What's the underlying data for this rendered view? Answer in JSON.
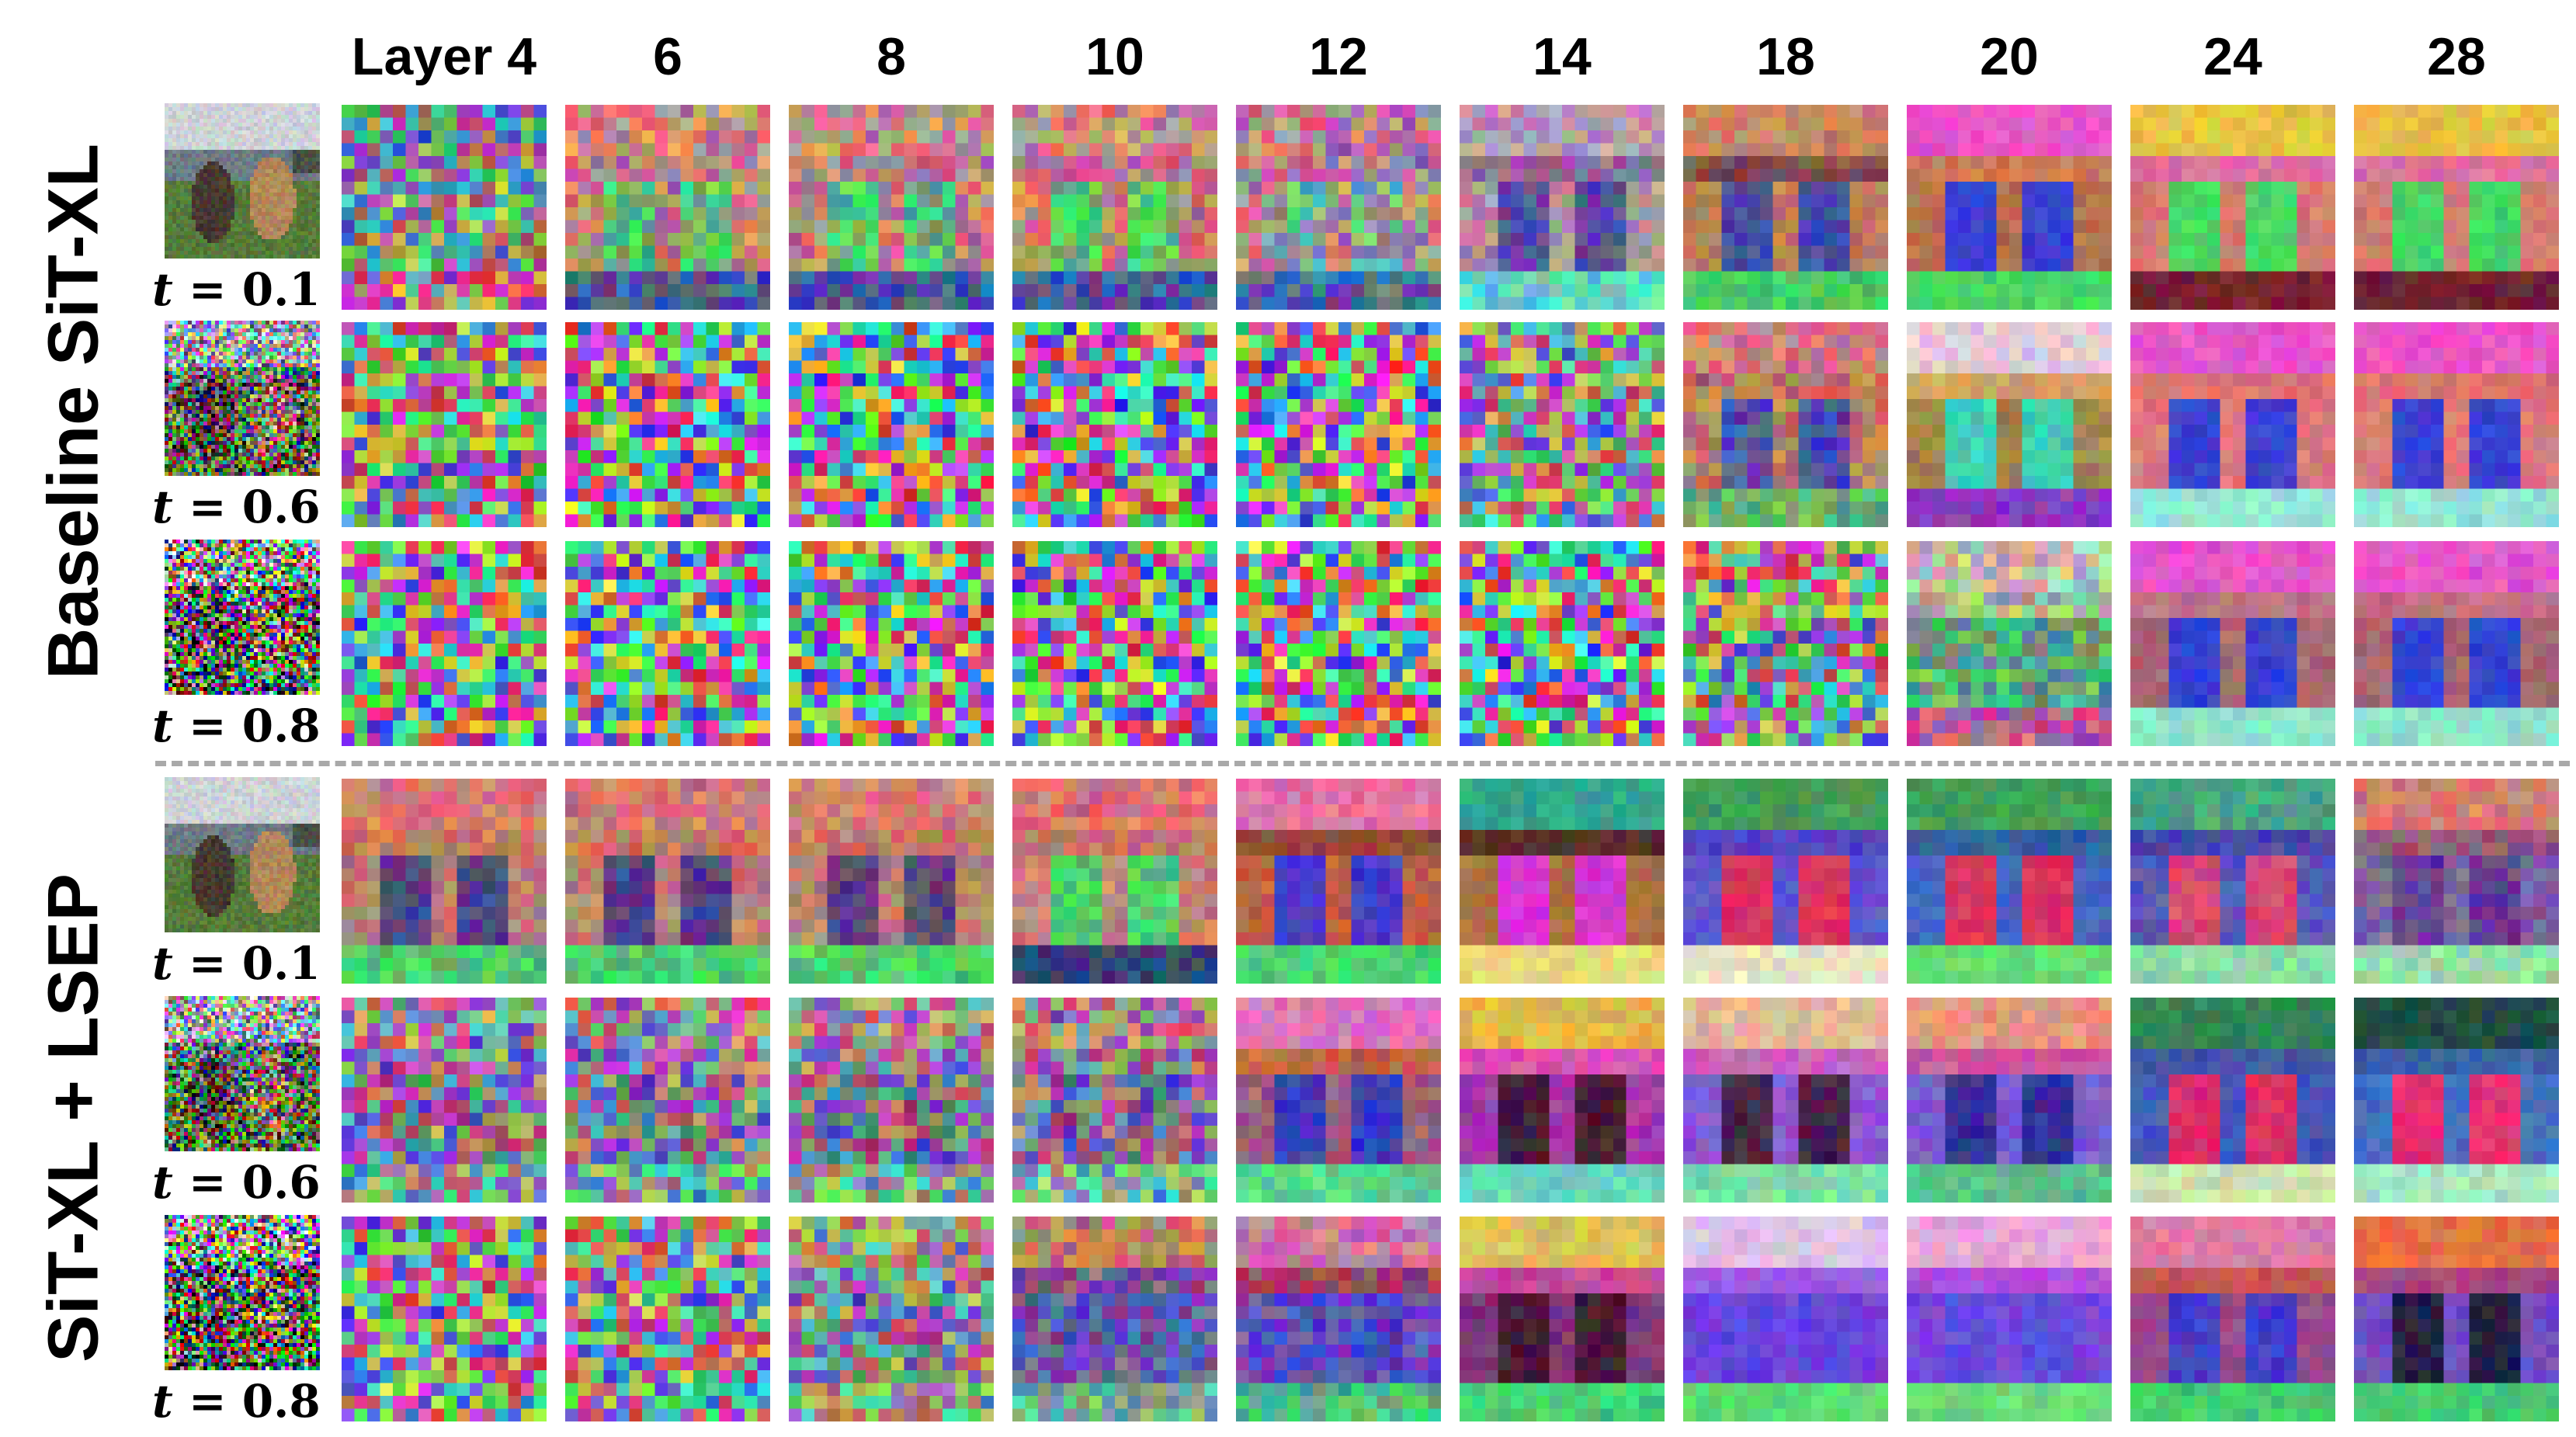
{
  "figure": {
    "columns": [
      "Layer 4",
      "6",
      "8",
      "10",
      "12",
      "14",
      "18",
      "20",
      "24",
      "28"
    ],
    "groups": [
      {
        "label": "Baseline SiT-XL",
        "rows": [
          {
            "t_var": "t",
            "t_eq": " = ",
            "t_value": "0.1",
            "noise": 0.1
          },
          {
            "t_var": "t",
            "t_eq": " = ",
            "t_value": "0.6",
            "noise": 0.6
          },
          {
            "t_var": "t",
            "t_eq": " = ",
            "t_value": "0.8",
            "noise": 0.8
          }
        ]
      },
      {
        "label": "SiT-XL + LSEP",
        "rows": [
          {
            "t_var": "t",
            "t_eq": " = ",
            "t_value": "0.1",
            "noise": 0.1
          },
          {
            "t_var": "t",
            "t_eq": " = ",
            "t_value": "0.6",
            "noise": 0.6
          },
          {
            "t_var": "t",
            "t_eq": " = ",
            "t_value": "0.8",
            "noise": 0.8
          }
        ]
      }
    ],
    "colors": {
      "separator": "#a9a9a9",
      "sky": "#c8d0d8",
      "water": "#6f7f8c",
      "grass": "#4f7a34",
      "dog": "#9a7550",
      "pink": "#f04fd0",
      "salmon": "#ee8a78",
      "blue": "#3038d8",
      "green": "#40e060",
      "red": "#e02848"
    }
  }
}
